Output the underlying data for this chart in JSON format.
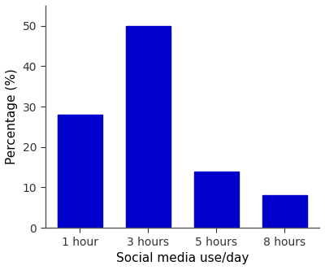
{
  "categories": [
    "1 hour",
    "3 hours",
    "5 hours",
    "8 hours"
  ],
  "values": [
    28,
    50,
    14,
    8
  ],
  "bar_color": "#0000CC",
  "xlabel": "Social media use/day",
  "ylabel": "Percentage (%)",
  "ylim": [
    0,
    55
  ],
  "yticks": [
    0,
    10,
    20,
    30,
    40,
    50
  ],
  "bar_width": 0.65,
  "xlabel_fontsize": 11,
  "ylabel_fontsize": 11,
  "tick_fontsize": 10,
  "background_color": "#ffffff"
}
